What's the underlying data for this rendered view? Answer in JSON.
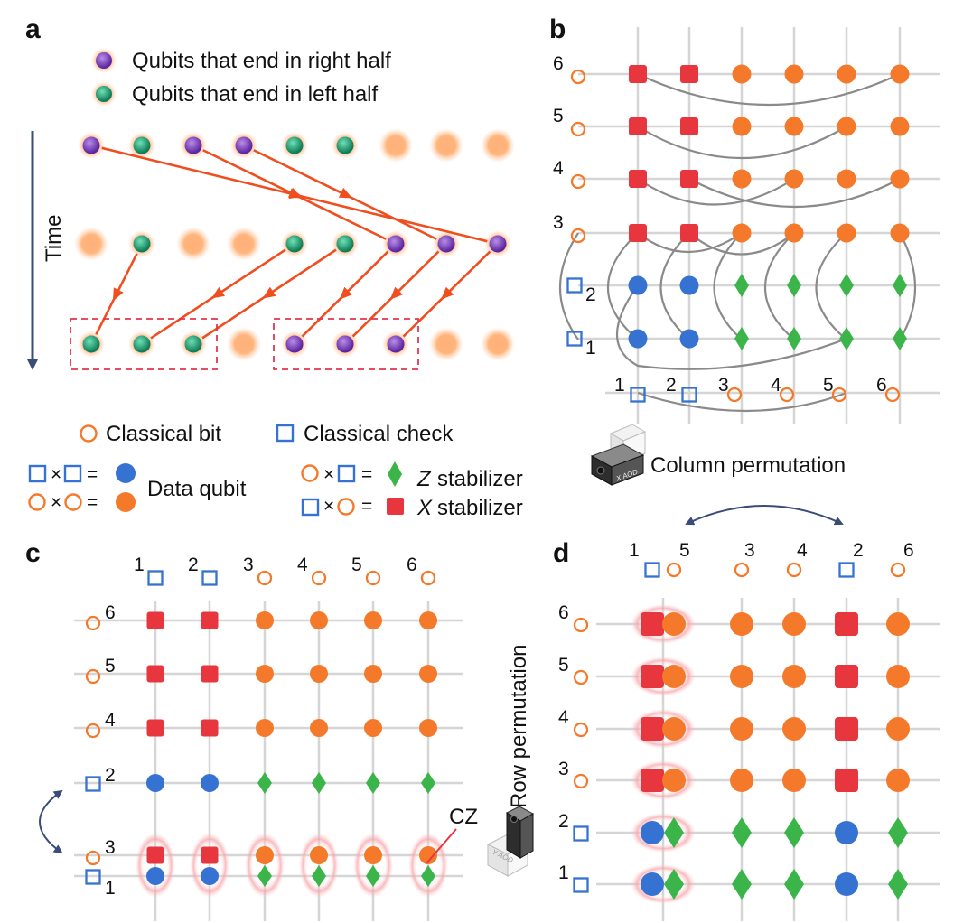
{
  "panels": {
    "a": {
      "label": "a",
      "legend_right": "Qubits that end in right half",
      "legend_left": "Qubits that end in left half",
      "time_label": "Time"
    },
    "b": {
      "label": "b",
      "column_permutation": "Column permutation",
      "aod_tag": "X AOD"
    },
    "c": {
      "label": "c",
      "cz_label": "CZ"
    },
    "d": {
      "label": "d",
      "row_permutation": "Row permutation",
      "aod_tag": "Y AOD"
    }
  },
  "legend": {
    "classical_bit": "Classical bit",
    "classical_check": "Classical check",
    "times": "×",
    "equals": "=",
    "data_qubit": "Data qubit",
    "z_stabilizer_letter": "Z",
    "x_stabilizer_letter": "X",
    "stabilizer_word": "stabilizer"
  },
  "b_cols": [
    "1",
    "2",
    "3",
    "4",
    "5",
    "6"
  ],
  "b_rows": [
    "6",
    "5",
    "4",
    "3",
    "2",
    "1"
  ],
  "c_cols": [
    "1",
    "2",
    "3",
    "4",
    "5",
    "6"
  ],
  "c_rows": [
    "6",
    "5",
    "4",
    "2",
    "3",
    "1"
  ],
  "d_cols": [
    "1",
    "5",
    "3",
    "4",
    "2",
    "6"
  ],
  "d_rows": [
    "6",
    "5",
    "4",
    "3",
    "2",
    "1"
  ],
  "colors": {
    "orange": "#f5792a",
    "red": "#e8363f",
    "blue": "#3672d1",
    "green": "#3bb54a",
    "purple": "#7a3fc0",
    "teal": "#1ea77a",
    "arrow": "#f04e1e",
    "navy": "#3a4d78",
    "dash": "#e5344f",
    "grid": "#d5d5d5",
    "arc": "#8a8a8a"
  }
}
